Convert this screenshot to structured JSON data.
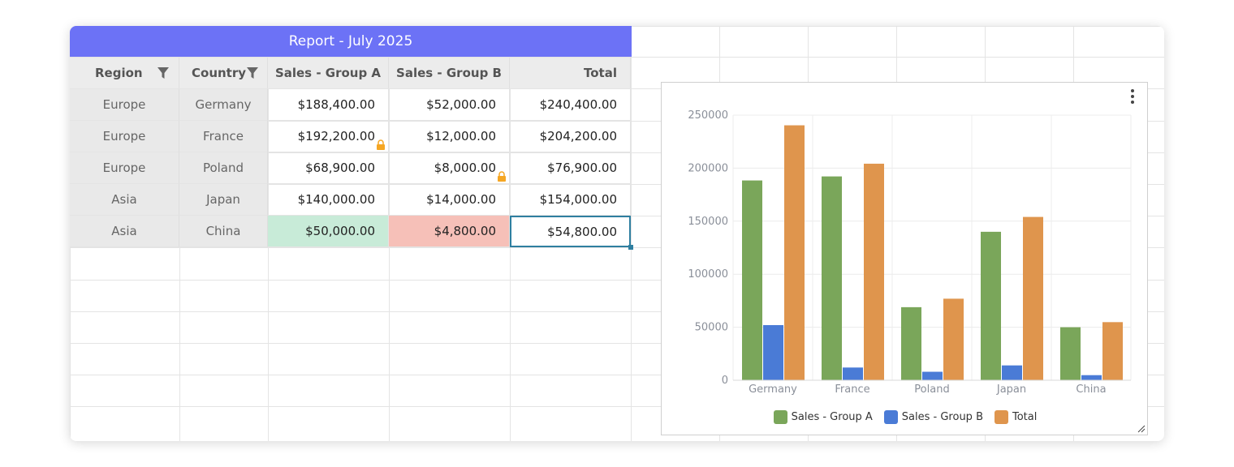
{
  "report": {
    "title": "Report - July 2025",
    "headers": [
      "Region",
      "Country",
      "Sales - Group A",
      "Sales - Group B",
      "Total"
    ],
    "rows": [
      [
        "Europe",
        "Germany",
        "$188,400.00",
        "$52,000.00",
        "$240,400.00"
      ],
      [
        "Europe",
        "France",
        "$192,200.00",
        "$12,000.00",
        "$204,200.00"
      ],
      [
        "Europe",
        "Poland",
        "$68,900.00",
        "$8,000.00",
        "$76,900.00"
      ],
      [
        "Asia",
        "Japan",
        "$140,000.00",
        "$14,000.00",
        "$154,000.00"
      ],
      [
        "Asia",
        "China",
        "$50,000.00",
        "$4,800.00",
        "$54,800.00"
      ]
    ]
  },
  "icons": {
    "filter": "filter-icon",
    "lock": "lock-icon",
    "menu": "kebab-menu-icon",
    "resize": "resize-handle-icon"
  },
  "colors": {
    "title_bg": "#6c72f6",
    "highlight_green": "#c8ebd8",
    "highlight_red": "#f6c0b8",
    "selection": "#2f7fa0",
    "lock": "#f5a623"
  },
  "chart_data": {
    "type": "bar",
    "categories": [
      "Germany",
      "France",
      "Poland",
      "Japan",
      "China"
    ],
    "series": [
      {
        "name": "Sales - Group A",
        "color": "#7aa65a",
        "values": [
          188400,
          192200,
          68900,
          140000,
          50000
        ]
      },
      {
        "name": "Sales - Group B",
        "color": "#4a7bd6",
        "values": [
          52000,
          12000,
          8000,
          14000,
          4800
        ]
      },
      {
        "name": "Total",
        "color": "#df954d",
        "values": [
          240400,
          204200,
          76900,
          154000,
          54800
        ]
      }
    ],
    "ylim": [
      0,
      250000
    ],
    "yticks": [
      "0",
      "50000",
      "100000",
      "150000",
      "200000",
      "250000"
    ],
    "grid": true,
    "legend": "bottom"
  }
}
